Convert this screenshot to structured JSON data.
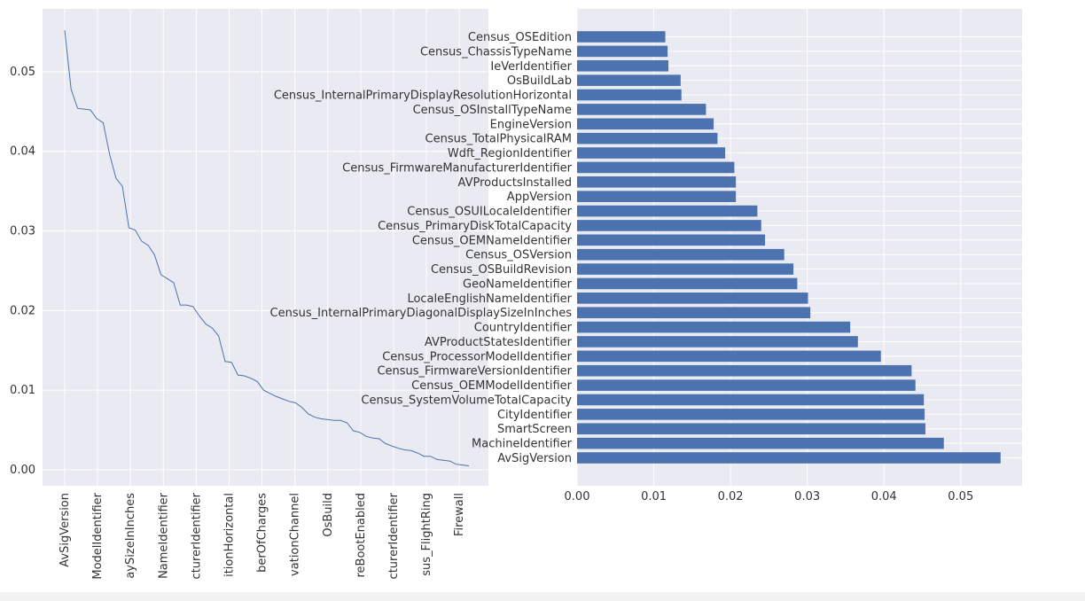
{
  "chart_data": [
    {
      "type": "line",
      "xticklabels": [
        "AvSigVersion",
        "ModelIdentifier",
        "aySizeInInches",
        "NameIdentifier",
        "cturerIdentifier",
        "itionHorizontal",
        "berOfCharges",
        "vationChannel",
        "OsBuild",
        "reBootEnabled",
        "cturerIdentifier",
        "sus_FlightRing",
        "Firewall"
      ],
      "ylim": [
        0,
        0.057
      ],
      "yticks": [
        0.0,
        0.01,
        0.02,
        0.03,
        0.04,
        0.05
      ],
      "grid": true,
      "color": "#4c72b0",
      "series": [
        {
          "values": [
            0.0552,
            0.0478,
            0.0454,
            0.0453,
            0.0452,
            0.0441,
            0.0436,
            0.0396,
            0.0366,
            0.0356,
            0.0304,
            0.0301,
            0.0287,
            0.0282,
            0.027,
            0.0245,
            0.024,
            0.0235,
            0.0207,
            0.0207,
            0.0205,
            0.0193,
            0.0183,
            0.0178,
            0.0168,
            0.0136,
            0.0135,
            0.0119,
            0.0118,
            0.0115,
            0.0111,
            0.01,
            0.0096,
            0.0092,
            0.0089,
            0.0086,
            0.0084,
            0.0078,
            0.007,
            0.0066,
            0.0064,
            0.0063,
            0.0062,
            0.0062,
            0.0059,
            0.0049,
            0.0047,
            0.0042,
            0.004,
            0.0039,
            0.0033,
            0.003,
            0.0027,
            0.0025,
            0.0024,
            0.0021,
            0.0017,
            0.0017,
            0.0013,
            0.0012,
            0.0011,
            0.0007,
            0.0006,
            0.0005
          ]
        }
      ]
    },
    {
      "type": "bar",
      "orientation": "horizontal",
      "categories": [
        "AvSigVersion",
        "MachineIdentifier",
        "SmartScreen",
        "CityIdentifier",
        "Census_SystemVolumeTotalCapacity",
        "Census_OEMModelIdentifier",
        "Census_FirmwareVersionIdentifier",
        "Census_ProcessorModelIdentifier",
        "AVProductStatesIdentifier",
        "CountryIdentifier",
        "Census_InternalPrimaryDiagonalDisplaySizeInInches",
        "LocaleEnglishNameIdentifier",
        "GeoNameIdentifier",
        "Census_OSBuildRevision",
        "Census_OSVersion",
        "Census_OEMNameIdentifier",
        "Census_PrimaryDiskTotalCapacity",
        "Census_OSUILocaleIdentifier",
        "AppVersion",
        "AVProductsInstalled",
        "Census_FirmwareManufacturerIdentifier",
        "Wdft_RegionIdentifier",
        "Census_TotalPhysicalRAM",
        "EngineVersion",
        "Census_OSInstallTypeName",
        "Census_InternalPrimaryDisplayResolutionHorizontal",
        "OsBuildLab",
        "IeVerIdentifier",
        "Census_ChassisTypeName",
        "Census_OSEdition"
      ],
      "values": [
        0.0552,
        0.0478,
        0.0454,
        0.0453,
        0.0452,
        0.0441,
        0.0436,
        0.0396,
        0.0366,
        0.0356,
        0.0304,
        0.0301,
        0.0287,
        0.0282,
        0.027,
        0.0245,
        0.024,
        0.0235,
        0.0207,
        0.0207,
        0.0205,
        0.0193,
        0.0183,
        0.0178,
        0.0168,
        0.0136,
        0.0135,
        0.0119,
        0.0118,
        0.0115
      ],
      "xlim": [
        0,
        0.058
      ],
      "xticks": [
        0.0,
        0.01,
        0.02,
        0.03,
        0.04,
        0.05
      ],
      "grid": true,
      "color": "#4c72b0"
    }
  ]
}
